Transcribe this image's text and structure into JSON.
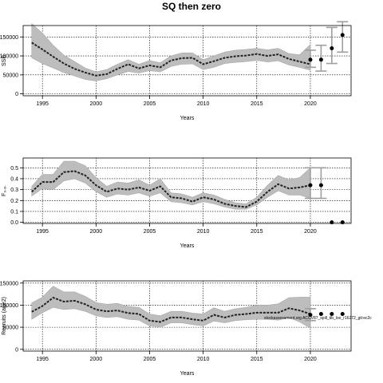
{
  "page": {
    "title": "SQ then zero"
  },
  "chart_data": [
    {
      "type": "line",
      "xlabel": "Years",
      "ylabel": "SSB",
      "xlim": [
        1993.2,
        2023.8
      ],
      "ylim": [
        -5000,
        180000
      ],
      "xticks": [
        1995,
        2000,
        2005,
        2010,
        2015,
        2020
      ],
      "xtick_labels": [
        "1995",
        "2000",
        "2005",
        "2010",
        "2015",
        "2020"
      ],
      "yticks": [
        0,
        50000,
        100000,
        150000
      ],
      "ytick_labels": [
        "0",
        "50000",
        "100000",
        "150000"
      ],
      "grid": true,
      "series": [
        {
          "x": [
            1994,
            1995,
            1996,
            1997,
            1998,
            1999,
            2000,
            2001,
            2002,
            2003,
            2004,
            2005,
            2006,
            2007,
            2008,
            2009,
            2010,
            2011,
            2012,
            2013,
            2014,
            2015,
            2016,
            2017,
            2018,
            2019,
            2020
          ],
          "values": [
            135000,
            117000,
            98000,
            80000,
            66000,
            56000,
            48000,
            52000,
            66000,
            78000,
            67000,
            75000,
            70000,
            88000,
            94000,
            95000,
            78000,
            86000,
            95000,
            99000,
            101000,
            105000,
            100000,
            104000,
            92000,
            85000,
            78000
          ],
          "lower": [
            95000,
            80000,
            68000,
            56000,
            47000,
            38000,
            34000,
            40000,
            50000,
            59000,
            55000,
            61000,
            58000,
            72000,
            78000,
            79000,
            64000,
            70000,
            80000,
            83000,
            85000,
            88000,
            84000,
            87000,
            76000,
            70000,
            62000
          ],
          "upper": [
            185000,
            160000,
            128000,
            102000,
            85000,
            68000,
            58000,
            64000,
            78000,
            90000,
            78000,
            88000,
            82000,
            100000,
            108000,
            108000,
            90000,
            100000,
            110000,
            115000,
            117000,
            120000,
            116000,
            120000,
            106000,
            103000,
            130000
          ]
        }
      ],
      "projection": [
        {
          "x": 2020,
          "value": 90000,
          "lower": 70000,
          "upper": 115000
        },
        {
          "x": 2021,
          "value": 90000,
          "lower": 60000,
          "upper": 128000
        },
        {
          "x": 2022,
          "value": 120000,
          "lower": 80000,
          "upper": 175000
        },
        {
          "x": 2023,
          "value": 155000,
          "lower": 110000,
          "upper": 190000
        }
      ]
    },
    {
      "type": "line",
      "xlabel": "Years",
      "ylabel": "F₃.₈.",
      "xlim": [
        1993.2,
        2023.8
      ],
      "ylim": [
        -0.01,
        0.59
      ],
      "xticks": [
        1995,
        2000,
        2005,
        2010,
        2015,
        2020
      ],
      "xtick_labels": [
        "1995",
        "2000",
        "2005",
        "2010",
        "2015",
        "2020"
      ],
      "yticks": [
        0.0,
        0.1,
        0.2,
        0.3,
        0.4,
        0.5
      ],
      "ytick_labels": [
        "0.0",
        "0.1",
        "0.2",
        "0.3",
        "0.4",
        "0.5"
      ],
      "grid": true,
      "series": [
        {
          "x": [
            1994,
            1995,
            1996,
            1997,
            1998,
            1999,
            2000,
            2001,
            2002,
            2003,
            2004,
            2005,
            2006,
            2007,
            2008,
            2009,
            2010,
            2011,
            2012,
            2013,
            2014,
            2015,
            2016,
            2017,
            2018,
            2019,
            2020
          ],
          "values": [
            0.28,
            0.37,
            0.37,
            0.46,
            0.47,
            0.43,
            0.34,
            0.28,
            0.31,
            0.3,
            0.32,
            0.29,
            0.33,
            0.23,
            0.22,
            0.19,
            0.23,
            0.21,
            0.17,
            0.15,
            0.14,
            0.19,
            0.28,
            0.35,
            0.31,
            0.32,
            0.34
          ],
          "lower": [
            0.24,
            0.31,
            0.3,
            0.38,
            0.4,
            0.36,
            0.28,
            0.23,
            0.26,
            0.25,
            0.27,
            0.24,
            0.27,
            0.19,
            0.18,
            0.16,
            0.19,
            0.17,
            0.14,
            0.12,
            0.12,
            0.16,
            0.23,
            0.29,
            0.25,
            0.25,
            0.22
          ],
          "upper": [
            0.33,
            0.44,
            0.44,
            0.56,
            0.56,
            0.52,
            0.41,
            0.33,
            0.37,
            0.36,
            0.39,
            0.34,
            0.4,
            0.27,
            0.26,
            0.23,
            0.27,
            0.25,
            0.21,
            0.18,
            0.17,
            0.23,
            0.34,
            0.43,
            0.39,
            0.41,
            0.5
          ]
        }
      ],
      "projection": [
        {
          "x": 2020,
          "value": 0.34,
          "lower": 0.22,
          "upper": 0.5
        },
        {
          "x": 2021,
          "value": 0.34,
          "lower": 0.22,
          "upper": 0.5
        },
        {
          "x": 2022,
          "value": 0.0
        },
        {
          "x": 2023,
          "value": 0.0
        }
      ]
    },
    {
      "type": "line",
      "xlabel": "Years",
      "ylabel": "Recruits (age2)",
      "xlim": [
        1993.2,
        2023.8
      ],
      "ylim": [
        -4000,
        155000
      ],
      "xticks": [
        1995,
        2000,
        2005,
        2010,
        2015,
        2020
      ],
      "xtick_labels": [
        "1995",
        "2000",
        "2005",
        "2010",
        "2015",
        "2020"
      ],
      "yticks": [
        0,
        50000,
        100000,
        150000
      ],
      "ytick_labels": [
        "0",
        "50000",
        "100000",
        "150000"
      ],
      "grid": true,
      "annotation": "stockassessment.org ACCV87_spill_tib_loo_r16272_git:ec2c",
      "series": [
        {
          "x": [
            1994,
            1995,
            1996,
            1997,
            1998,
            1999,
            2000,
            2001,
            2002,
            2003,
            2004,
            2005,
            2006,
            2007,
            2008,
            2009,
            2010,
            2011,
            2012,
            2013,
            2014,
            2015,
            2016,
            2017,
            2018,
            2019,
            2020
          ],
          "values": [
            85000,
            98000,
            117000,
            108000,
            110000,
            102000,
            90000,
            86000,
            88000,
            82000,
            80000,
            65000,
            62000,
            72000,
            72000,
            68000,
            65000,
            78000,
            72000,
            78000,
            80000,
            83000,
            83000,
            83000,
            93000,
            88000,
            80000
          ],
          "lower": [
            68000,
            83000,
            95000,
            90000,
            92000,
            86000,
            76000,
            72000,
            74000,
            68000,
            66000,
            53000,
            50000,
            60000,
            60000,
            56000,
            53000,
            64000,
            60000,
            65000,
            67000,
            68000,
            68000,
            66000,
            72000,
            62000,
            48000
          ],
          "upper": [
            105000,
            118000,
            143000,
            130000,
            130000,
            120000,
            106000,
            102000,
            104000,
            97000,
            95000,
            80000,
            76000,
            86000,
            86000,
            82000,
            80000,
            94000,
            86000,
            92000,
            95000,
            100000,
            100000,
            103000,
            117000,
            118000,
            118000
          ]
        }
      ],
      "projection": [
        {
          "x": 2020,
          "value": 78000,
          "lower": 65000,
          "upper": 92000
        },
        {
          "x": 2021,
          "value": 80000
        },
        {
          "x": 2022,
          "value": 80000
        },
        {
          "x": 2023,
          "value": 80000
        }
      ]
    }
  ]
}
